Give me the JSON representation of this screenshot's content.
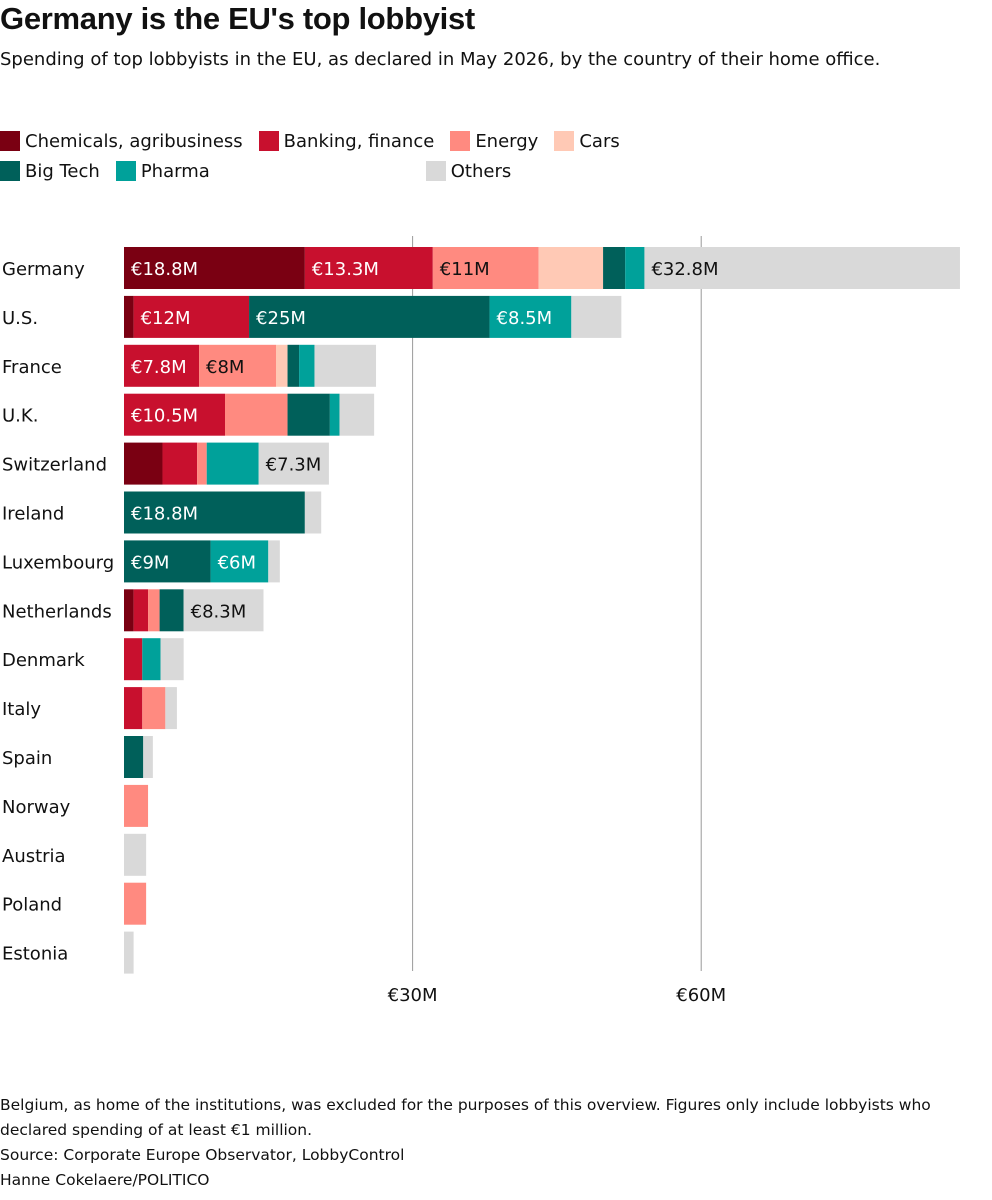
{
  "title": "Germany is the EU's top lobbyist",
  "subtitle": "Spending of top lobbyists in the EU, as declared in May 2026, by the country of their home office.",
  "legend": [
    {
      "label": "Chemicals, agribusiness",
      "color": "#7a0012"
    },
    {
      "label": "Banking, finance",
      "color": "#c8102e"
    },
    {
      "label": "Energy",
      "color": "#ff8a80"
    },
    {
      "label": "Cars",
      "color": "#ffc9b5"
    },
    {
      "label": "Big Tech",
      "color": "#00605a"
    },
    {
      "label": "Pharma",
      "color": "#00a19a"
    },
    {
      "label": "Others",
      "color": "#d9d9d9"
    }
  ],
  "footer": {
    "note": "Belgium, as home of the institutions, was excluded for the purposes of this overview. Figures only include lobbyists who declared spending of at least €1 million.",
    "source": "Source: Corporate Europe Observator, LobbyControl",
    "credit": "Hanne Cokelaere/POLITICO"
  },
  "chart_data": {
    "type": "bar",
    "orientation": "horizontal",
    "stacked": true,
    "unit": "€M",
    "categories": [
      "Germany",
      "U.S.",
      "France",
      "U.K.",
      "Switzerland",
      "Ireland",
      "Luxembourg",
      "Netherlands",
      "Denmark",
      "Italy",
      "Spain",
      "Norway",
      "Austria",
      "Poland",
      "Estonia"
    ],
    "series": [
      {
        "name": "Chemicals, agribusiness",
        "color": "#7a0012",
        "values": [
          18.8,
          1,
          0,
          0,
          4,
          0,
          0,
          1,
          0,
          0,
          0,
          0,
          0,
          0,
          0
        ]
      },
      {
        "name": "Banking, finance",
        "color": "#c8102e",
        "values": [
          13.3,
          12,
          7.8,
          10.5,
          3.6,
          0,
          0,
          1.5,
          1.9,
          1.9,
          0,
          0,
          0,
          0,
          0
        ]
      },
      {
        "name": "Energy",
        "color": "#ff8a80",
        "values": [
          11,
          0,
          8,
          6.5,
          1,
          0,
          0,
          1.2,
          0,
          2.4,
          0,
          2.5,
          0,
          2.3,
          0
        ]
      },
      {
        "name": "Cars",
        "color": "#ffc9b5",
        "values": [
          6.7,
          0,
          1.2,
          0,
          0,
          0,
          0,
          0,
          0,
          0,
          0,
          0,
          0,
          0,
          0
        ]
      },
      {
        "name": "Big Tech",
        "color": "#00605a",
        "values": [
          2.3,
          25,
          1.2,
          4.4,
          0,
          18.8,
          9,
          2.5,
          0,
          0,
          2,
          0,
          0,
          0,
          0
        ]
      },
      {
        "name": "Pharma",
        "color": "#00a19a",
        "values": [
          2,
          8.5,
          1.6,
          1,
          5.4,
          0,
          6,
          0,
          1.9,
          0,
          0,
          0,
          0,
          0,
          0
        ]
      },
      {
        "name": "Others",
        "color": "#d9d9d9",
        "values": [
          32.8,
          5.2,
          6.4,
          3.6,
          7.3,
          1.7,
          1.2,
          8.3,
          2.4,
          1.2,
          1,
          0,
          2.3,
          0,
          1
        ]
      }
    ],
    "value_labels": [
      {
        "category": "Germany",
        "series": "Chemicals, agribusiness",
        "text": "€18.8M"
      },
      {
        "category": "Germany",
        "series": "Banking, finance",
        "text": "€13.3M"
      },
      {
        "category": "Germany",
        "series": "Energy",
        "text": "€11M"
      },
      {
        "category": "Germany",
        "series": "Others",
        "text": "€32.8M"
      },
      {
        "category": "U.S.",
        "series": "Banking, finance",
        "text": "€12M"
      },
      {
        "category": "U.S.",
        "series": "Big Tech",
        "text": "€25M"
      },
      {
        "category": "U.S.",
        "series": "Pharma",
        "text": "€8.5M"
      },
      {
        "category": "France",
        "series": "Banking, finance",
        "text": "€7.8M"
      },
      {
        "category": "France",
        "series": "Energy",
        "text": "€8M"
      },
      {
        "category": "U.K.",
        "series": "Banking, finance",
        "text": "€10.5M"
      },
      {
        "category": "Switzerland",
        "series": "Others",
        "text": "€7.3M"
      },
      {
        "category": "Ireland",
        "series": "Big Tech",
        "text": "€18.8M"
      },
      {
        "category": "Luxembourg",
        "series": "Big Tech",
        "text": "€9M"
      },
      {
        "category": "Luxembourg",
        "series": "Pharma",
        "text": "€6M"
      },
      {
        "category": "Netherlands",
        "series": "Others",
        "text": "€8.3M"
      }
    ],
    "x_ticks": [
      {
        "value": 30,
        "label": "€30M"
      },
      {
        "value": 60,
        "label": "€60M"
      }
    ],
    "xlim": [
      0,
      87
    ],
    "grid": "vertical at ticks"
  }
}
